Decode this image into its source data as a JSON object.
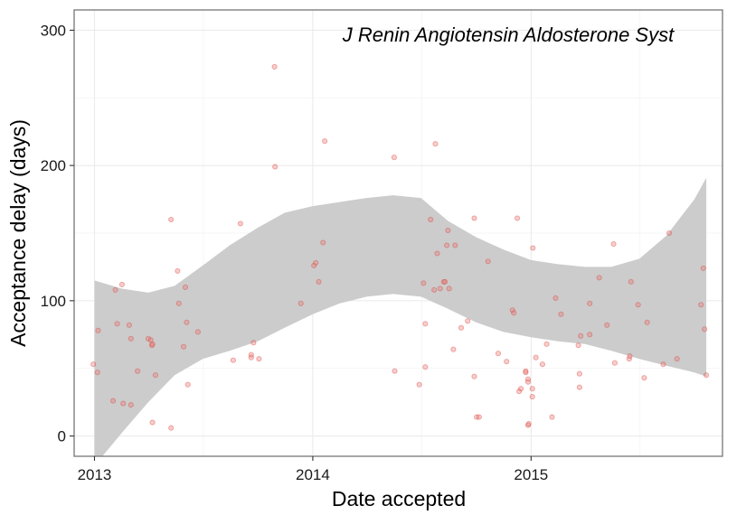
{
  "chart_data": {
    "type": "scatter",
    "title": "",
    "annotation": "J Renin Angiotensin Aldosterone Syst",
    "xlabel": "Date accepted",
    "ylabel": "Acceptance delay (days)",
    "x_ticks": [
      "2013",
      "2014",
      "2015"
    ],
    "y_ticks": [
      0,
      100,
      200,
      300
    ],
    "xlim": [
      "2012-11-28",
      "2015-11-17"
    ],
    "ylim": [
      -15,
      315
    ],
    "grid": true,
    "legend": "none",
    "point_color": "#e8736c",
    "ribbon_color": "#cccccc",
    "points": [
      [
        "2012-12-30",
        53
      ],
      [
        "2013-01-06",
        47
      ],
      [
        "2013-01-07",
        78
      ],
      [
        "2013-02-01",
        26
      ],
      [
        "2013-02-05",
        108
      ],
      [
        "2013-02-08",
        83
      ],
      [
        "2013-02-16",
        112
      ],
      [
        "2013-02-18",
        24
      ],
      [
        "2013-02-28",
        82
      ],
      [
        "2013-03-03",
        23
      ],
      [
        "2013-03-03",
        72
      ],
      [
        "2013-03-14",
        48
      ],
      [
        "2013-04-01",
        72
      ],
      [
        "2013-04-05",
        71
      ],
      [
        "2013-04-07",
        67
      ],
      [
        "2013-04-08",
        68
      ],
      [
        "2013-04-08",
        10
      ],
      [
        "2013-04-13",
        45
      ],
      [
        "2013-05-09",
        160
      ],
      [
        "2013-05-09",
        6
      ],
      [
        "2013-05-20",
        122
      ],
      [
        "2013-05-22",
        98
      ],
      [
        "2013-05-30",
        66
      ],
      [
        "2013-06-02",
        110
      ],
      [
        "2013-06-04",
        84
      ],
      [
        "2013-06-06",
        38
      ],
      [
        "2013-06-23",
        77
      ],
      [
        "2013-08-21",
        56
      ],
      [
        "2013-09-02",
        157
      ],
      [
        "2013-09-20",
        60
      ],
      [
        "2013-09-20",
        58
      ],
      [
        "2013-09-24",
        69
      ],
      [
        "2013-10-03",
        57
      ],
      [
        "2013-10-29",
        273
      ],
      [
        "2013-10-30",
        199
      ],
      [
        "2013-12-12",
        98
      ],
      [
        "2014-01-03",
        126
      ],
      [
        "2014-01-06",
        128
      ],
      [
        "2014-01-11",
        114
      ],
      [
        "2014-01-18",
        143
      ],
      [
        "2014-01-21",
        218
      ],
      [
        "2014-05-17",
        206
      ],
      [
        "2014-05-18",
        48
      ],
      [
        "2014-06-28",
        38
      ],
      [
        "2014-07-05",
        113
      ],
      [
        "2014-07-08",
        83
      ],
      [
        "2014-07-08",
        51
      ],
      [
        "2014-07-17",
        160
      ],
      [
        "2014-07-23",
        108
      ],
      [
        "2014-07-25",
        216
      ],
      [
        "2014-07-28",
        135
      ],
      [
        "2014-08-02",
        109
      ],
      [
        "2014-08-08",
        114
      ],
      [
        "2014-08-10",
        114
      ],
      [
        "2014-08-13",
        141
      ],
      [
        "2014-08-15",
        152
      ],
      [
        "2014-08-17",
        109
      ],
      [
        "2014-08-24",
        64
      ],
      [
        "2014-08-27",
        141
      ],
      [
        "2014-09-06",
        80
      ],
      [
        "2014-09-17",
        85
      ],
      [
        "2014-09-28",
        44
      ],
      [
        "2014-09-28",
        161
      ],
      [
        "2014-10-02",
        14
      ],
      [
        "2014-10-06",
        14
      ],
      [
        "2014-10-21",
        129
      ],
      [
        "2014-11-07",
        61
      ],
      [
        "2014-11-21",
        55
      ],
      [
        "2014-12-01",
        93
      ],
      [
        "2014-12-03",
        91
      ],
      [
        "2014-12-09",
        161
      ],
      [
        "2014-12-12",
        33
      ],
      [
        "2014-12-15",
        35
      ],
      [
        "2014-12-23",
        48
      ],
      [
        "2014-12-23",
        47
      ],
      [
        "2014-12-27",
        42
      ],
      [
        "2014-12-27",
        40
      ],
      [
        "2014-12-27",
        8
      ],
      [
        "2014-12-28",
        9
      ],
      [
        "2015-01-03",
        29
      ],
      [
        "2015-01-03",
        35
      ],
      [
        "2015-01-04",
        139
      ],
      [
        "2015-01-09",
        58
      ],
      [
        "2015-01-20",
        53
      ],
      [
        "2015-01-27",
        68
      ],
      [
        "2015-02-05",
        14
      ],
      [
        "2015-02-11",
        102
      ],
      [
        "2015-02-20",
        90
      ],
      [
        "2015-03-21",
        67
      ],
      [
        "2015-03-23",
        46
      ],
      [
        "2015-03-23",
        36
      ],
      [
        "2015-03-25",
        74
      ],
      [
        "2015-04-09",
        98
      ],
      [
        "2015-04-09",
        75
      ],
      [
        "2015-04-25",
        117
      ],
      [
        "2015-05-08",
        82
      ],
      [
        "2015-05-19",
        142
      ],
      [
        "2015-05-21",
        54
      ],
      [
        "2015-06-14",
        57
      ],
      [
        "2015-06-15",
        59
      ],
      [
        "2015-06-17",
        114
      ],
      [
        "2015-06-29",
        97
      ],
      [
        "2015-07-09",
        43
      ],
      [
        "2015-07-14",
        84
      ],
      [
        "2015-08-10",
        53
      ],
      [
        "2015-08-20",
        150
      ],
      [
        "2015-09-02",
        57
      ],
      [
        "2015-10-12",
        97
      ],
      [
        "2015-10-16",
        124
      ],
      [
        "2015-10-18",
        79
      ],
      [
        "2015-10-21",
        45
      ]
    ],
    "ribbon_upper": [
      [
        "2013-01-01",
        115
      ],
      [
        "2013-02-15",
        109
      ],
      [
        "2013-04-01",
        106
      ],
      [
        "2013-05-15",
        111
      ],
      [
        "2013-07-01",
        126
      ],
      [
        "2013-08-15",
        141
      ],
      [
        "2013-10-01",
        154
      ],
      [
        "2013-11-15",
        165
      ],
      [
        "2014-01-01",
        170
      ],
      [
        "2014-02-15",
        173
      ],
      [
        "2014-04-01",
        176
      ],
      [
        "2014-05-15",
        178
      ],
      [
        "2014-07-01",
        176
      ],
      [
        "2014-08-15",
        159
      ],
      [
        "2014-10-01",
        147
      ],
      [
        "2014-11-15",
        138
      ],
      [
        "2015-01-01",
        130
      ],
      [
        "2015-02-15",
        127
      ],
      [
        "2015-04-01",
        125
      ],
      [
        "2015-05-15",
        125
      ],
      [
        "2015-07-01",
        131
      ],
      [
        "2015-08-15",
        148
      ],
      [
        "2015-10-01",
        175
      ],
      [
        "2015-10-21",
        191
      ]
    ],
    "ribbon_lower": [
      [
        "2013-01-01",
        -22
      ],
      [
        "2013-02-15",
        2
      ],
      [
        "2013-04-01",
        25
      ],
      [
        "2013-05-15",
        45
      ],
      [
        "2013-07-01",
        57
      ],
      [
        "2013-08-15",
        63
      ],
      [
        "2013-10-01",
        70
      ],
      [
        "2013-11-15",
        80
      ],
      [
        "2014-01-01",
        90
      ],
      [
        "2014-02-15",
        98
      ],
      [
        "2014-04-01",
        103
      ],
      [
        "2014-05-15",
        105
      ],
      [
        "2014-07-01",
        103
      ],
      [
        "2014-08-15",
        94
      ],
      [
        "2014-10-01",
        84
      ],
      [
        "2014-11-15",
        77
      ],
      [
        "2015-01-01",
        73
      ],
      [
        "2015-02-15",
        70
      ],
      [
        "2015-04-01",
        68
      ],
      [
        "2015-05-15",
        63
      ],
      [
        "2015-07-01",
        57
      ],
      [
        "2015-08-15",
        52
      ],
      [
        "2015-10-01",
        47
      ],
      [
        "2015-10-21",
        44
      ]
    ]
  }
}
